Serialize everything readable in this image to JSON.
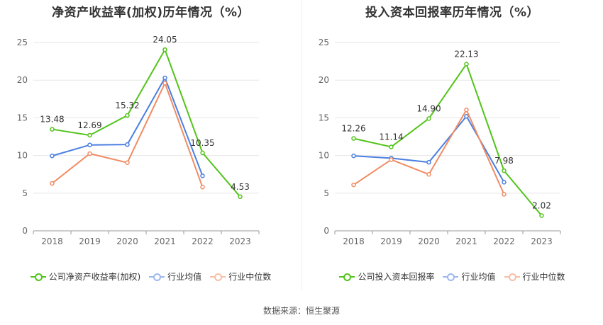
{
  "source_text": "数据来源：恒生聚源",
  "colors": {
    "company": "#52c41a",
    "avg": "#4a7fe0",
    "median": "#f08c64"
  },
  "chart_data": [
    {
      "type": "line",
      "title": "净资产收益率(加权)历年情况（%）",
      "categories": [
        "2018",
        "2019",
        "2020",
        "2021",
        "2022",
        "2023"
      ],
      "ylim": [
        0,
        25
      ],
      "yticks": [
        0,
        5,
        10,
        15,
        20,
        25
      ],
      "grid": true,
      "legend_position": "bottom",
      "series": [
        {
          "name": "公司净资产收益率(加权)",
          "key": "company",
          "values": [
            13.48,
            12.69,
            15.32,
            24.05,
            10.35,
            4.53
          ],
          "labels": [
            "13.48",
            "12.69",
            "15.32",
            "24.05",
            "10.35",
            "4.53"
          ]
        },
        {
          "name": "行业均值",
          "key": "avg",
          "values": [
            9.95,
            11.4,
            11.45,
            20.3,
            7.3,
            null
          ]
        },
        {
          "name": "行业中位数",
          "key": "median",
          "values": [
            6.3,
            10.25,
            9.05,
            19.6,
            5.8,
            null
          ]
        }
      ]
    },
    {
      "type": "line",
      "title": "投入资本回报率历年情况（%）",
      "categories": [
        "2018",
        "2019",
        "2020",
        "2021",
        "2022",
        "2023"
      ],
      "ylim": [
        0,
        25
      ],
      "yticks": [
        0,
        5,
        10,
        15,
        20,
        25
      ],
      "grid": true,
      "legend_position": "bottom",
      "series": [
        {
          "name": "公司投入资本回报率",
          "key": "company",
          "values": [
            12.26,
            11.14,
            14.9,
            22.13,
            7.98,
            2.02
          ],
          "labels": [
            "12.26",
            "11.14",
            "14.90",
            "22.13",
            "7.98",
            "2.02"
          ]
        },
        {
          "name": "行业均值",
          "key": "avg",
          "values": [
            9.95,
            9.65,
            9.1,
            15.2,
            6.45,
            null
          ]
        },
        {
          "name": "行业中位数",
          "key": "median",
          "values": [
            6.1,
            9.45,
            7.5,
            16.05,
            4.85,
            null
          ]
        }
      ]
    }
  ]
}
